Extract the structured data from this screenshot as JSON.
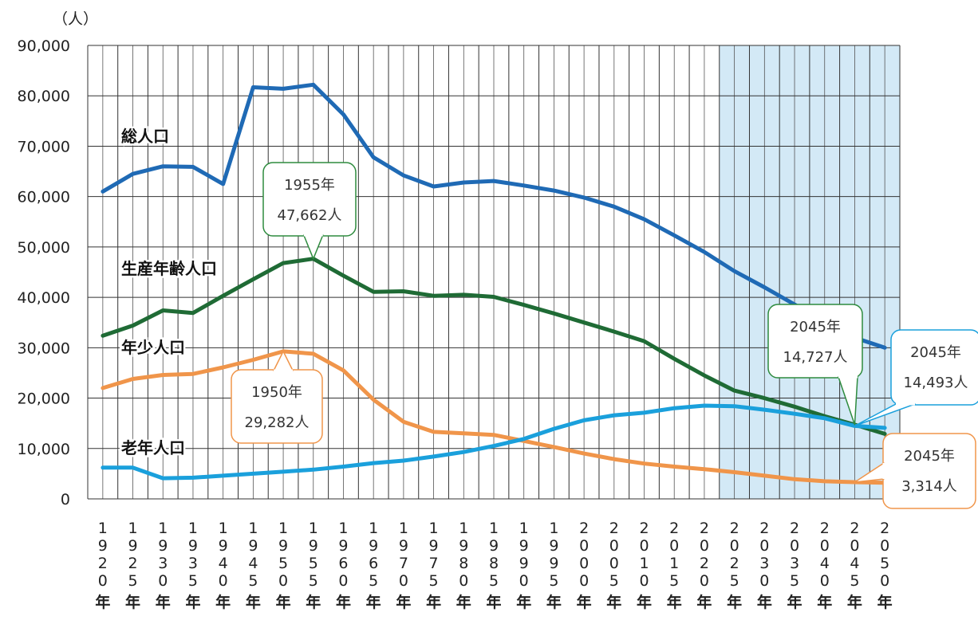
{
  "chart_data": {
    "type": "line",
    "ylabel": "（人）",
    "ylim": [
      0,
      90000
    ],
    "yticks": [
      "0",
      "10,000",
      "20,000",
      "30,000",
      "40,000",
      "50,000",
      "60,000",
      "70,000",
      "80,000",
      "90,000"
    ],
    "yticks_values": [
      0,
      10000,
      20000,
      30000,
      40000,
      50000,
      60000,
      70000,
      80000,
      90000
    ],
    "x": [
      1920,
      1925,
      1930,
      1935,
      1940,
      1945,
      1950,
      1955,
      1960,
      1965,
      1970,
      1975,
      1980,
      1985,
      1990,
      1995,
      2000,
      2005,
      2010,
      2015,
      2020,
      2025,
      2030,
      2035,
      2040,
      2045,
      2050
    ],
    "x_suffix": "年",
    "grid": true,
    "projection_shading": {
      "from": 2025,
      "to": 2050,
      "color": "#d3e9f6"
    },
    "series": [
      {
        "name": "総人口",
        "color": "#1f6ab5",
        "values": [
          61000,
          64500,
          66000,
          65900,
          62500,
          81700,
          81400,
          82200,
          76300,
          67800,
          64200,
          62000,
          62800,
          63100,
          62200,
          61200,
          59800,
          58000,
          55500,
          52300,
          49000,
          45200,
          42000,
          38600,
          34800,
          32000,
          30000
        ]
      },
      {
        "name": "生産年齢人口",
        "color": "#1f6b35",
        "values": [
          32400,
          34400,
          37400,
          36900,
          40300,
          43600,
          46800,
          47662,
          44300,
          41100,
          41200,
          40300,
          40500,
          40100,
          38500,
          36800,
          35000,
          33200,
          31300,
          27800,
          24500,
          21500,
          20000,
          18300,
          16400,
          14727,
          12900
        ]
      },
      {
        "name": "年少人口",
        "color": "#f0954a",
        "values": [
          22000,
          23800,
          24600,
          24800,
          26100,
          27600,
          29282,
          28800,
          25500,
          19700,
          15300,
          13300,
          13000,
          12700,
          11500,
          10300,
          9000,
          7900,
          7000,
          6400,
          5900,
          5300,
          4600,
          3900,
          3500,
          3314,
          3200
        ]
      },
      {
        "name": "老年人口",
        "color": "#1aa0dc",
        "values": [
          6200,
          6200,
          4100,
          4200,
          4600,
          5000,
          5400,
          5800,
          6400,
          7100,
          7600,
          8400,
          9300,
          10500,
          11900,
          13900,
          15600,
          16600,
          17100,
          18000,
          18500,
          18400,
          17700,
          16900,
          16000,
          14493,
          14100
        ]
      }
    ],
    "annotations": [
      {
        "line1": "1955年",
        "line2": "47,662人",
        "series": 1,
        "x": 1955,
        "border": "#2e8b3e"
      },
      {
        "line1": "1950年",
        "line2": "29,282人",
        "series": 2,
        "x": 1950,
        "border": "#f0954a"
      },
      {
        "line1": "2045年",
        "line2": "14,727人",
        "series": 1,
        "x": 2045,
        "border": "#2e8b3e"
      },
      {
        "line1": "2045年",
        "line2": "14,493人",
        "series": 3,
        "x": 2045,
        "border": "#1aa0dc"
      },
      {
        "line1": "2045年",
        "line2": "3,314人",
        "series": 2,
        "x": 2045,
        "border": "#f0954a"
      }
    ]
  }
}
